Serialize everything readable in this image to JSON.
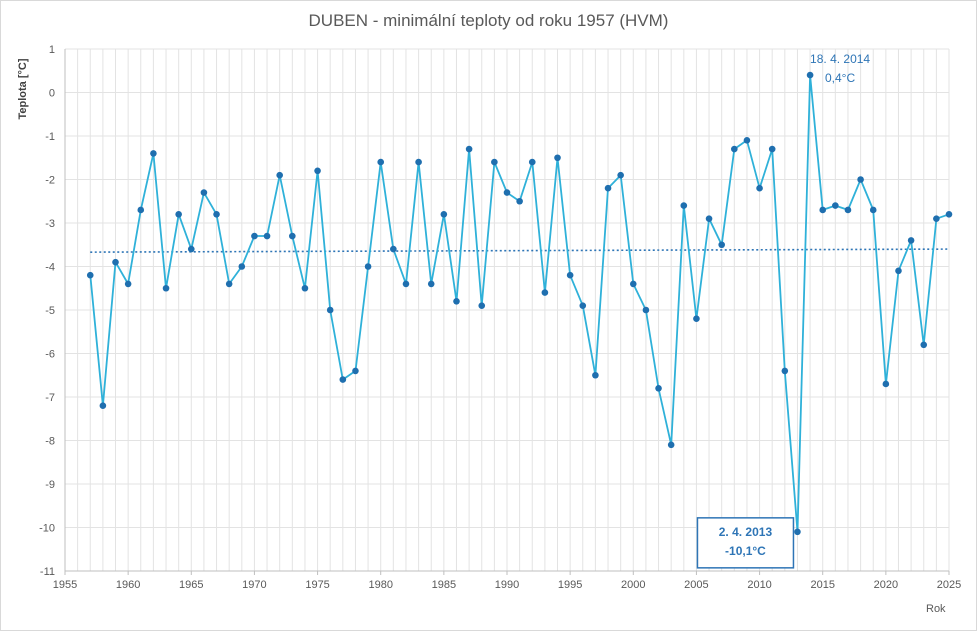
{
  "chart_data": {
    "type": "line",
    "title": "DUBEN - minimální teploty od roku 1957 (HVM)",
    "xlabel": "Rok",
    "ylabel": "Teplota [°C]",
    "xlim": [
      1955,
      2025
    ],
    "ylim": [
      -11,
      1
    ],
    "x_ticks": [
      1955,
      1960,
      1965,
      1970,
      1975,
      1980,
      1985,
      1990,
      1995,
      2000,
      2005,
      2010,
      2015,
      2020,
      2025
    ],
    "y_ticks": [
      1,
      0,
      -1,
      -2,
      -3,
      -4,
      -5,
      -6,
      -7,
      -8,
      -9,
      -10,
      -11
    ],
    "grid": true,
    "series": [
      {
        "color": "#2fb1d9",
        "marker_color": "#1f6faf",
        "x": [
          1957,
          1958,
          1959,
          1960,
          1961,
          1962,
          1963,
          1964,
          1965,
          1966,
          1967,
          1968,
          1969,
          1970,
          1971,
          1972,
          1973,
          1974,
          1975,
          1976,
          1977,
          1978,
          1979,
          1980,
          1981,
          1982,
          1983,
          1984,
          1985,
          1986,
          1987,
          1988,
          1989,
          1990,
          1991,
          1992,
          1993,
          1994,
          1995,
          1996,
          1997,
          1998,
          1999,
          2000,
          2001,
          2002,
          2003,
          2004,
          2005,
          2006,
          2007,
          2008,
          2009,
          2010,
          2011,
          2012,
          2013,
          2014,
          2015,
          2016,
          2017,
          2018,
          2019,
          2020,
          2021,
          2022,
          2023,
          2024,
          2025
        ],
        "y": [
          -4.2,
          -7.2,
          -3.9,
          -4.4,
          -2.7,
          -1.4,
          -4.5,
          -2.8,
          -3.6,
          -2.3,
          -2.8,
          -4.4,
          -4.0,
          -3.3,
          -3.3,
          -1.9,
          -3.3,
          -4.5,
          -1.8,
          -5.0,
          -6.6,
          -6.4,
          -4.0,
          -1.6,
          -3.6,
          -4.4,
          -1.6,
          -4.4,
          -2.8,
          -4.8,
          -1.3,
          -4.9,
          -1.6,
          -2.3,
          -2.5,
          -1.6,
          -4.6,
          -1.5,
          -4.2,
          -4.9,
          -6.5,
          -2.2,
          -1.9,
          -4.4,
          -5.0,
          -6.8,
          -8.1,
          -2.6,
          -5.2,
          -2.9,
          -3.5,
          -1.3,
          -1.1,
          -2.2,
          -1.3,
          -6.4,
          -10.1,
          0.4,
          -2.7,
          -2.6,
          -2.7,
          -2.0,
          -2.7,
          -6.7,
          -4.1,
          -3.4,
          -5.8,
          -2.9,
          -2.8
        ]
      }
    ],
    "trendline": {
      "style": "dotted",
      "color": "#2e75b6",
      "y_start": -3.67,
      "y_end": -3.6
    },
    "annotations": [
      {
        "x": 2014,
        "y": 0.4,
        "line1": "18. 4. 2014",
        "line2": "0,4°C",
        "boxed": false
      },
      {
        "x": 2013,
        "y": -10.1,
        "line1": "2. 4. 2013",
        "line2": "-10,1°C",
        "boxed": true
      }
    ]
  }
}
